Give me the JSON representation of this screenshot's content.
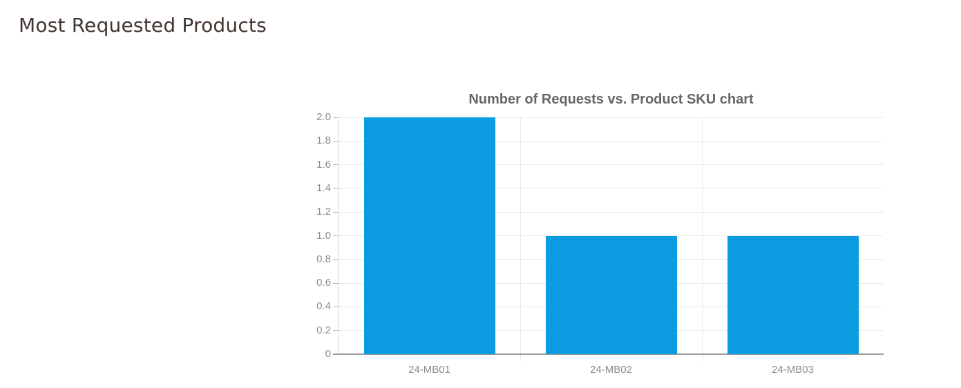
{
  "page": {
    "title": "Most Requested Products",
    "background_color": "#ffffff",
    "title_color": "#41362f"
  },
  "chart_data": {
    "type": "bar",
    "title": "Number of Requests vs. Product SKU chart",
    "xlabel": "",
    "ylabel": "",
    "categories": [
      "24-MB01",
      "24-MB02",
      "24-MB03"
    ],
    "values": [
      2,
      1,
      1
    ],
    "series_name": "Number of Requests",
    "ylim": [
      0,
      2
    ],
    "yticks": [
      {
        "value": 0,
        "label": "0"
      },
      {
        "value": 0.2,
        "label": "0.2"
      },
      {
        "value": 0.4,
        "label": "0.4"
      },
      {
        "value": 0.6,
        "label": "0.6"
      },
      {
        "value": 0.8,
        "label": "0.8"
      },
      {
        "value": 1.0,
        "label": "1.0"
      },
      {
        "value": 1.2,
        "label": "1.2"
      },
      {
        "value": 1.4,
        "label": "1.4"
      },
      {
        "value": 1.6,
        "label": "1.6"
      },
      {
        "value": 1.8,
        "label": "1.8"
      },
      {
        "value": 2.0,
        "label": "2.0"
      }
    ],
    "grid": true,
    "legend": "none",
    "colors": {
      "bar": "#0a9be1",
      "title": "#666666",
      "tick_label": "#8b8b8b",
      "gridline": "#e9e9e9",
      "axis_line": "#9b9b9b"
    }
  }
}
